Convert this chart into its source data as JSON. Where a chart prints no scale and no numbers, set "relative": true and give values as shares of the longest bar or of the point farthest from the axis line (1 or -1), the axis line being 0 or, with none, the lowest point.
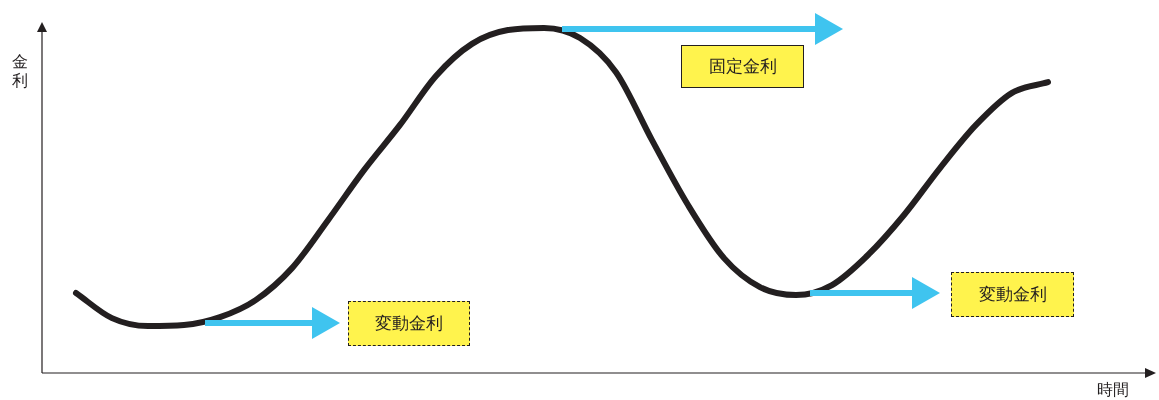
{
  "chart_data": {
    "type": "line",
    "relative": true,
    "xlabel": "時間",
    "ylabel": "金利",
    "marker": "none",
    "legend": false,
    "categories": [
      null,
      null,
      null,
      null,
      null,
      null,
      null,
      null,
      null,
      null,
      null,
      null,
      null,
      null,
      null,
      null,
      null,
      null,
      null,
      null,
      null,
      null,
      null,
      null,
      null,
      null,
      null,
      null
    ],
    "series": [
      {
        "color": "#231f20",
        "values": [
          0.232,
          0.159,
          0.136,
          0.139,
          0.162,
          0.212,
          0.304,
          0.443,
          0.588,
          0.719,
          0.861,
          0.954,
          0.994,
          1,
          0.971,
          0.872,
          0.675,
          0.487,
          0.333,
          0.249,
          0.226,
          0.255,
          0.342,
          0.458,
          0.594,
          0.719,
          0.812,
          0.843
        ]
      }
    ],
    "annotations": [
      "変動金利",
      "固定金利",
      "変動金利"
    ]
  }
}
